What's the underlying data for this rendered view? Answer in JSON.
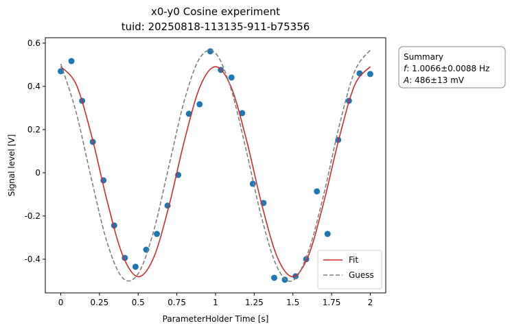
{
  "chart_data": {
    "type": "scatter",
    "title": "x0-y0 Cosine experiment",
    "subtitle": "tuid: 20250818-113135-911-b75356",
    "x_label": "ParameterHolder Time [s]",
    "y_label": "Signal level [V]",
    "xlim": [
      -0.1,
      2.1
    ],
    "ylim": [
      -0.556,
      0.625
    ],
    "xticks": [
      0,
      0.25,
      0.5,
      0.75,
      1,
      1.25,
      1.5,
      1.75,
      2
    ],
    "yticks": [
      -0.4,
      -0.2,
      0,
      0.2,
      0.4,
      0.6
    ],
    "legend": "lower right",
    "series": [
      {
        "color": "#1f77b4",
        "mode": "markers",
        "x": [
          0,
          0.069,
          0.138,
          0.207,
          0.276,
          0.345,
          0.414,
          0.483,
          0.552,
          0.621,
          0.69,
          0.759,
          0.828,
          0.897,
          0.966,
          1.034,
          1.103,
          1.172,
          1.241,
          1.31,
          1.379,
          1.448,
          1.517,
          1.586,
          1.655,
          1.724,
          1.793,
          1.862,
          1.931,
          2
        ],
        "values": [
          0.47,
          0.517,
          0.333,
          0.143,
          -0.035,
          -0.244,
          -0.394,
          -0.435,
          -0.356,
          -0.283,
          -0.152,
          -0.01,
          0.273,
          0.317,
          0.562,
          0.476,
          0.441,
          0.276,
          -0.051,
          -0.14,
          -0.486,
          -0.495,
          -0.479,
          -0.4,
          -0.086,
          -0.283,
          0.152,
          0.333,
          0.46,
          0.457
        ]
      },
      {
        "name": "Fit",
        "color": "#d62728",
        "mode": "line",
        "dash": false,
        "x": [
          0,
          0.1,
          0.2,
          0.3,
          0.4,
          0.5,
          0.6,
          0.7,
          0.8,
          0.9,
          1,
          1.1,
          1.2,
          1.3,
          1.4,
          1.5,
          1.6,
          1.7,
          1.8,
          1.9,
          2
        ],
        "values": [
          0.491,
          0.408,
          0.169,
          -0.132,
          -0.382,
          -0.481,
          -0.393,
          -0.151,
          0.152,
          0.399,
          0.491,
          0.398,
          0.152,
          -0.15,
          -0.392,
          -0.481,
          -0.384,
          -0.135,
          0.164,
          0.407,
          0.491
        ]
      },
      {
        "name": "Guess",
        "color": "#7f7f7f",
        "mode": "line",
        "dash": true,
        "x": [
          0,
          0.1,
          0.2,
          0.3,
          0.4,
          0.5,
          0.6,
          0.7,
          0.8,
          0.9,
          1,
          1.1,
          1.2,
          1.3,
          1.4,
          1.5,
          1.6,
          1.7,
          1.8,
          1.9,
          2
        ],
        "values": [
          0.504,
          0.278,
          -0.035,
          -0.324,
          -0.487,
          -0.467,
          -0.27,
          0.035,
          0.338,
          0.533,
          0.553,
          0.388,
          0.098,
          -0.214,
          -0.44,
          -0.499,
          -0.364,
          -0.098,
          0.219,
          0.471,
          0.568
        ]
      }
    ],
    "summary": {
      "title": "Summary",
      "items": [
        {
          "symbol": "f",
          "text": ": 1.0066±0.0088 Hz"
        },
        {
          "symbol": "A",
          "text": ": 486±13 mV"
        }
      ]
    }
  }
}
